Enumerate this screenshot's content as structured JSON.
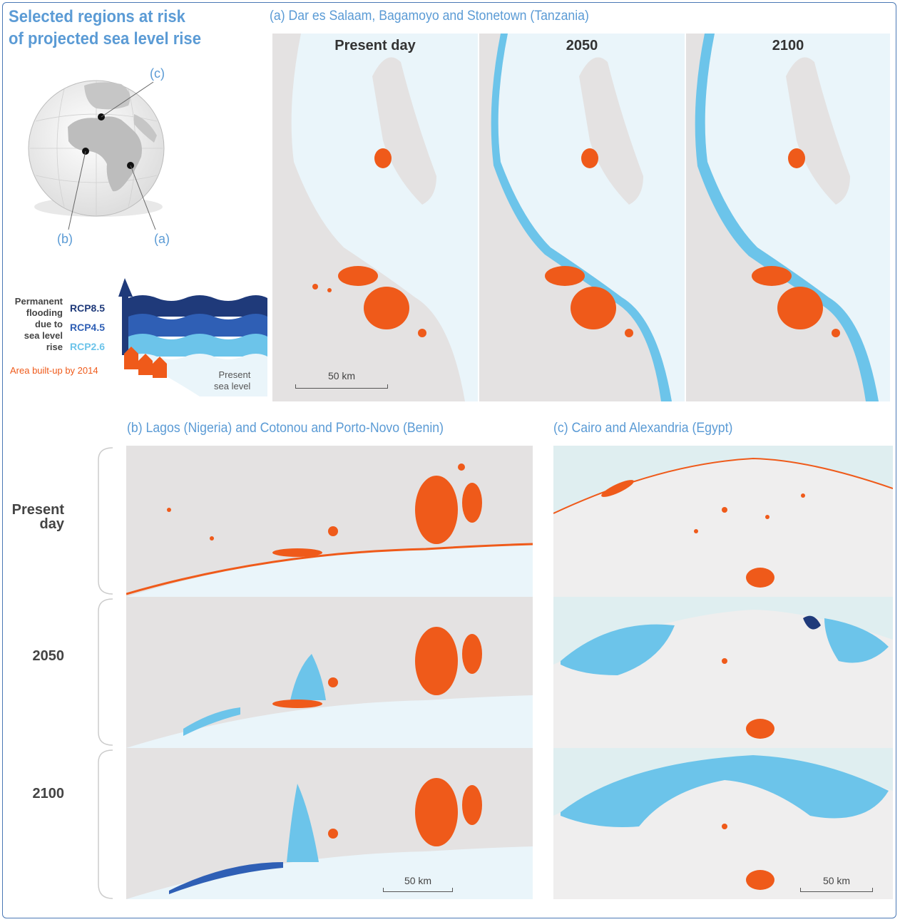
{
  "title": {
    "line1": "Selected regions at risk",
    "line2": "of projected sea level rise"
  },
  "globe": {
    "label_c": "(c)",
    "label_b": "(b)",
    "label_a": "(a)"
  },
  "legend": {
    "heading": "Permanent flooding due to sea level rise",
    "heading_lines": [
      "Permanent",
      "flooding",
      "due to",
      "sea level",
      "rise"
    ],
    "rcp85": "RCP8.5",
    "rcp45": "RCP4.5",
    "rcp26": "RCP2.6",
    "built_up": "Area built-up by 2014",
    "present_sea_level_lines": [
      "Present",
      "sea level"
    ],
    "colors": {
      "rcp85": "#1f3a7a",
      "rcp45": "#2f5fb5",
      "rcp26": "#6cc4ea",
      "built_up": "#ef5a1a",
      "land": "#e4e2e2",
      "sea": "#eaf5fa"
    }
  },
  "panel_a": {
    "title": "(a) Dar es Salaam, Bagamoyo and Stonetown (Tanzania)",
    "maps": [
      {
        "label": "Present day"
      },
      {
        "label": "2050"
      },
      {
        "label": "2100"
      }
    ],
    "scale": "50 km"
  },
  "panel_b": {
    "title": "(b) Lagos (Nigeria) and Cotonou and Porto-Novo (Benin)",
    "scale": "50 km"
  },
  "panel_c": {
    "title": "(c) Cairo and Alexandria (Egypt)",
    "scale": "50 km"
  },
  "rows": {
    "present_lines": [
      "Present",
      "day"
    ],
    "y2050": "2050",
    "y2100": "2100"
  }
}
